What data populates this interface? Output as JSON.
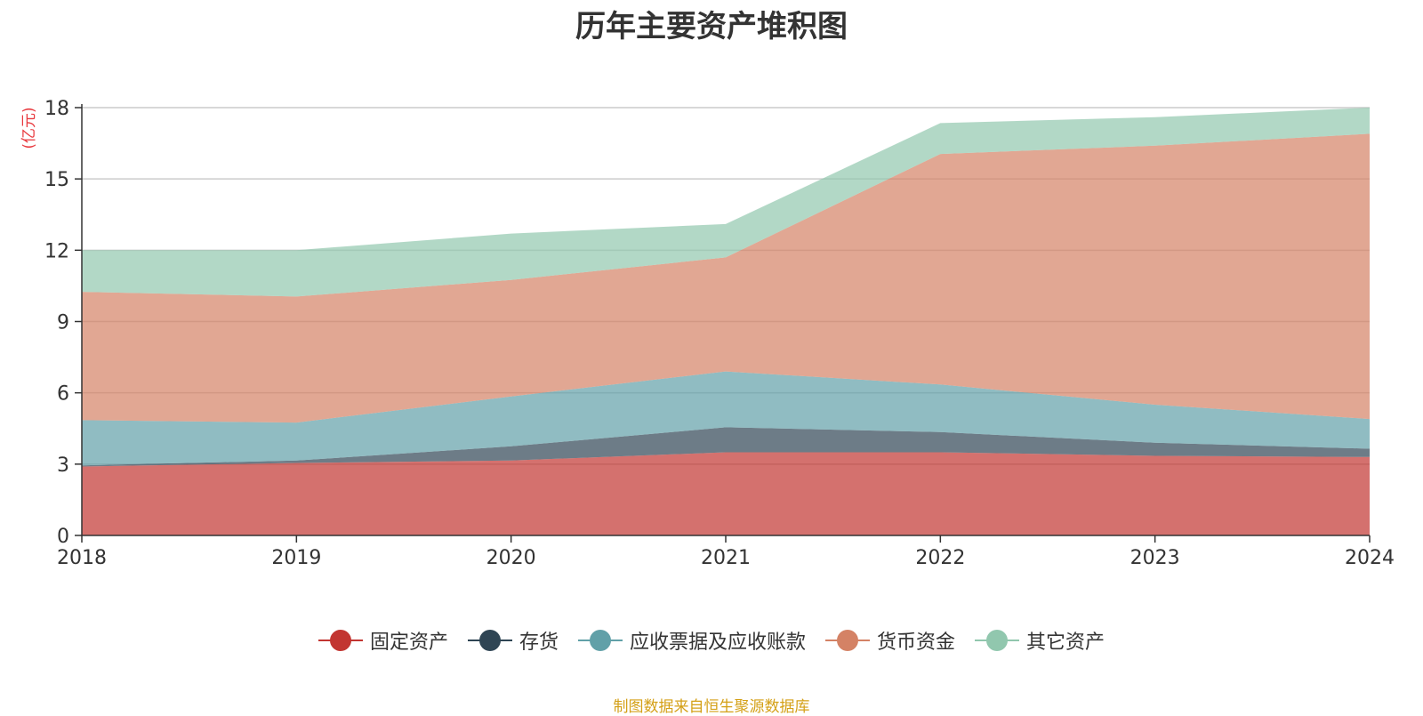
{
  "chart_data": {
    "type": "area",
    "stacked": true,
    "title": "历年主要资产堆积图",
    "ylabel": "(亿元)",
    "xlabel": "",
    "x": [
      "2018",
      "2019",
      "2020",
      "2021",
      "2022",
      "2023",
      "2024"
    ],
    "ylim": [
      0,
      18
    ],
    "yticks": [
      0,
      3,
      6,
      9,
      12,
      15,
      18
    ],
    "grid": true,
    "legend_position": "bottom",
    "series": [
      {
        "name": "固定资产",
        "color": "#c23531",
        "values": [
          2.9,
          3.05,
          3.15,
          3.5,
          3.5,
          3.35,
          3.3
        ]
      },
      {
        "name": "存货",
        "color": "#2f4554",
        "values": [
          0.05,
          0.1,
          0.6,
          1.05,
          0.85,
          0.55,
          0.35
        ]
      },
      {
        "name": "应收票据及应收账款",
        "color": "#61a0a8",
        "values": [
          1.9,
          1.6,
          2.1,
          2.35,
          2.0,
          1.6,
          1.25
        ]
      },
      {
        "name": "货币资金",
        "color": "#d48265",
        "values": [
          5.4,
          5.3,
          4.9,
          4.8,
          9.7,
          10.9,
          12.0
        ]
      },
      {
        "name": "其它资产",
        "color": "#91c7ae",
        "values": [
          1.75,
          1.95,
          1.95,
          1.4,
          1.3,
          1.2,
          1.1
        ]
      }
    ]
  },
  "source_note": "制图数据来自恒生聚源数据库"
}
